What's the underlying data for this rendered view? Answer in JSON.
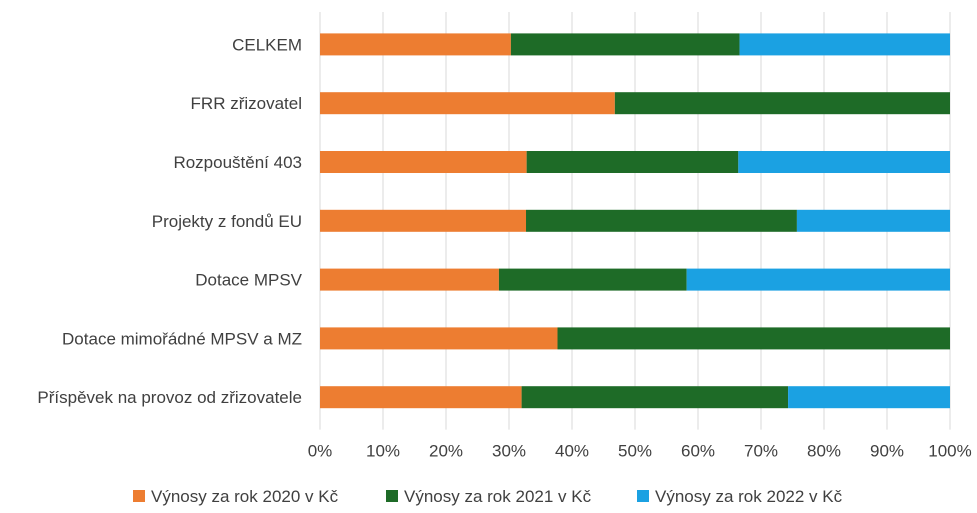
{
  "chart_data": {
    "type": "bar",
    "orientation": "horizontal",
    "stacked": "percent",
    "title": "",
    "xlabel": "",
    "ylabel": "",
    "xlim": [
      0,
      100
    ],
    "x_ticks": [
      "0%",
      "10%",
      "20%",
      "30%",
      "40%",
      "50%",
      "60%",
      "70%",
      "80%",
      "90%",
      "100%"
    ],
    "grid": true,
    "legend_position": "bottom",
    "categories": [
      "CELKEM",
      "FRR zřizovatel",
      "Rozpouštění 403",
      "Projekty z fondů EU",
      "Dotace MPSV",
      "Dotace mimořádné MPSV a MZ",
      "Příspěvek na provoz od zřizovatele"
    ],
    "series": [
      {
        "name": "Výnosy za rok 2020 v Kč",
        "color": "#ED7D31",
        "values": [
          30.3,
          46.8,
          32.8,
          32.7,
          28.4,
          37.7,
          32.0
        ]
      },
      {
        "name": "Výnosy za rok 2021 v Kč",
        "color": "#1E6B27",
        "values": [
          36.3,
          53.2,
          33.6,
          43.0,
          29.8,
          62.3,
          42.3
        ]
      },
      {
        "name": "Výnosy za rok 2022 v Kč",
        "color": "#1BA1E2",
        "values": [
          33.4,
          0.0,
          33.6,
          24.3,
          41.8,
          0.0,
          25.7
        ]
      }
    ]
  }
}
